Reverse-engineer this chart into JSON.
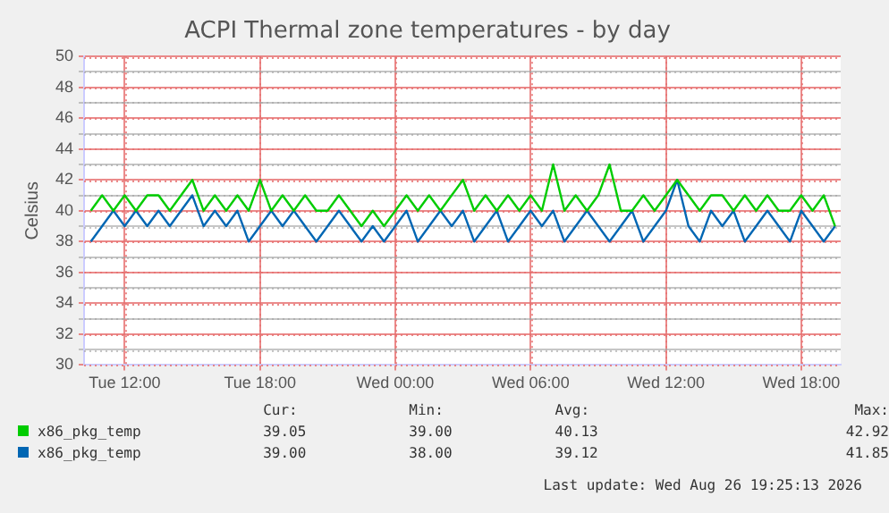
{
  "chart_data": {
    "type": "line",
    "title": "ACPI Thermal zone temperatures - by day",
    "ylabel": "Celsius",
    "x": [
      "2026-08-25T10:30",
      "2026-08-25T11:00",
      "2026-08-25T11:30",
      "2026-08-25T12:00",
      "2026-08-25T12:30",
      "2026-08-25T13:00",
      "2026-08-25T13:30",
      "2026-08-25T14:00",
      "2026-08-25T14:30",
      "2026-08-25T15:00",
      "2026-08-25T15:30",
      "2026-08-25T16:00",
      "2026-08-25T16:30",
      "2026-08-25T17:00",
      "2026-08-25T17:30",
      "2026-08-25T18:00",
      "2026-08-25T18:30",
      "2026-08-25T19:00",
      "2026-08-25T19:30",
      "2026-08-25T20:00",
      "2026-08-25T20:30",
      "2026-08-25T21:00",
      "2026-08-25T21:30",
      "2026-08-25T22:00",
      "2026-08-25T22:30",
      "2026-08-25T23:00",
      "2026-08-25T23:30",
      "2026-08-26T00:00",
      "2026-08-26T00:30",
      "2026-08-26T01:00",
      "2026-08-26T01:30",
      "2026-08-26T02:00",
      "2026-08-26T02:30",
      "2026-08-26T03:00",
      "2026-08-26T03:30",
      "2026-08-26T04:00",
      "2026-08-26T04:30",
      "2026-08-26T05:00",
      "2026-08-26T05:30",
      "2026-08-26T06:00",
      "2026-08-26T06:30",
      "2026-08-26T07:00",
      "2026-08-26T07:30",
      "2026-08-26T08:00",
      "2026-08-26T08:30",
      "2026-08-26T09:00",
      "2026-08-26T09:30",
      "2026-08-26T10:00",
      "2026-08-26T10:30",
      "2026-08-26T11:00",
      "2026-08-26T11:30",
      "2026-08-26T12:00",
      "2026-08-26T12:30",
      "2026-08-26T13:00",
      "2026-08-26T13:30",
      "2026-08-26T14:00",
      "2026-08-26T14:30",
      "2026-08-26T15:00",
      "2026-08-26T15:30",
      "2026-08-26T16:00",
      "2026-08-26T16:30",
      "2026-08-26T17:00",
      "2026-08-26T17:30",
      "2026-08-26T18:00",
      "2026-08-26T18:30",
      "2026-08-26T19:00",
      "2026-08-26T19:30"
    ],
    "series": [
      {
        "name": "x86_pkg_temp",
        "color": "#00cc00",
        "values": [
          40,
          41,
          40,
          41,
          40,
          41,
          41,
          40,
          41,
          42,
          40,
          41,
          40,
          41,
          40,
          42,
          40,
          41,
          40,
          41,
          40,
          40,
          41,
          40,
          39,
          40,
          39,
          40,
          41,
          40,
          41,
          40,
          41,
          42,
          40,
          41,
          40,
          41,
          40,
          41,
          40,
          43,
          40,
          41,
          40,
          41,
          43,
          40,
          40,
          41,
          40,
          41,
          42,
          41,
          40,
          41,
          41,
          40,
          41,
          40,
          41,
          40,
          40,
          41,
          40,
          41,
          39
        ]
      },
      {
        "name": "x86_pkg_temp",
        "color": "#0066b3",
        "values": [
          38,
          39,
          40,
          39,
          40,
          39,
          40,
          39,
          40,
          41,
          39,
          40,
          39,
          40,
          38,
          39,
          40,
          39,
          40,
          39,
          38,
          39,
          40,
          39,
          38,
          39,
          38,
          39,
          40,
          38,
          39,
          40,
          39,
          40,
          38,
          39,
          40,
          38,
          39,
          40,
          39,
          40,
          38,
          39,
          40,
          39,
          38,
          39,
          40,
          38,
          39,
          40,
          42,
          39,
          38,
          40,
          39,
          40,
          38,
          39,
          40,
          39,
          38,
          40,
          39,
          38,
          39
        ]
      }
    ],
    "xlim": [
      "2026-08-25T10:12",
      "2026-08-26T19:45"
    ],
    "xticks": [
      {
        "value": "2026-08-25T12:00",
        "label": "Tue 12:00"
      },
      {
        "value": "2026-08-25T18:00",
        "label": "Tue 18:00"
      },
      {
        "value": "2026-08-26T00:00",
        "label": "Wed 00:00"
      },
      {
        "value": "2026-08-26T06:00",
        "label": "Wed 06:00"
      },
      {
        "value": "2026-08-26T12:00",
        "label": "Wed 12:00"
      },
      {
        "value": "2026-08-26T18:00",
        "label": "Wed 18:00"
      }
    ],
    "ylim": [
      30,
      50
    ],
    "yticks": [
      30,
      {
        "value": 31,
        "label": null
      },
      32,
      {
        "value": 33,
        "label": null
      },
      34,
      {
        "value": 35,
        "label": null
      },
      36,
      {
        "value": 37,
        "label": null
      },
      38,
      {
        "value": 39,
        "label": null
      },
      40,
      {
        "value": 41,
        "label": null
      },
      42,
      {
        "value": 43,
        "label": null
      },
      44,
      {
        "value": 45,
        "label": null
      },
      46,
      {
        "value": 47,
        "label": null
      },
      48,
      {
        "value": 49,
        "label": null
      },
      50
    ],
    "grid": true,
    "legend": "bottom",
    "marker": "none",
    "line_style": "solid",
    "annotations": [
      "Cur:",
      "Min:",
      "Avg:",
      "Max:",
      "39.05",
      "39.00",
      "40.13",
      "42.92",
      "39.00",
      "38.00",
      "39.12",
      "41.85",
      "Last update: Wed Aug 26 19:25:13 2026"
    ]
  }
}
